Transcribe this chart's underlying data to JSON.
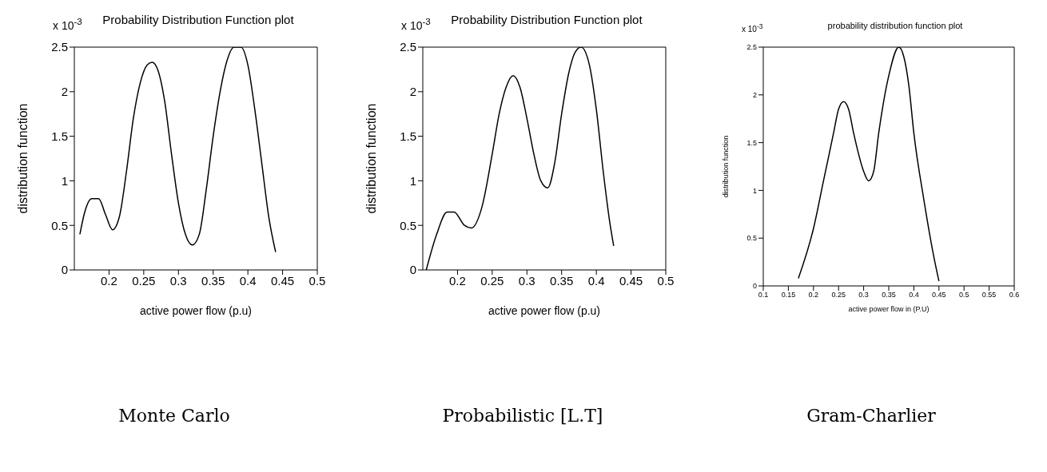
{
  "chart_data": [
    {
      "type": "line",
      "title": "Probability Distribution Function plot",
      "xlabel": "active power flow (p.u)",
      "ylabel": "distribution function",
      "annotations": [
        "x 10$^{-3}$",
        "Monte Carlo"
      ],
      "xlim": [
        0.15,
        0.5
      ],
      "xticks": [
        0.2,
        0.25,
        0.3,
        0.35,
        0.4,
        0.45,
        0.5
      ],
      "ylim": [
        0,
        2.5
      ],
      "yticks": [
        0,
        0.5,
        1,
        1.5,
        2,
        2.5
      ],
      "marker": "none",
      "series": [
        {
          "color": "#000000",
          "x": [
            0.158,
            0.165,
            0.175,
            0.185,
            0.195,
            0.205,
            0.215,
            0.225,
            0.235,
            0.245,
            0.255,
            0.262,
            0.27,
            0.28,
            0.29,
            0.3,
            0.31,
            0.32,
            0.33,
            0.34,
            0.35,
            0.36,
            0.37,
            0.38,
            0.39,
            0.4,
            0.41,
            0.42,
            0.43,
            0.44
          ],
          "values": [
            0.4,
            0.65,
            0.8,
            0.8,
            0.62,
            0.45,
            0.6,
            1.1,
            1.7,
            2.1,
            2.3,
            2.33,
            2.25,
            1.9,
            1.3,
            0.75,
            0.4,
            0.28,
            0.4,
            0.9,
            1.5,
            2.0,
            2.35,
            2.5,
            2.5,
            2.3,
            1.8,
            1.2,
            0.6,
            0.2
          ]
        }
      ]
    },
    {
      "type": "line",
      "title": "Probability Distribution Function plot",
      "xlabel": "active power flow (p.u)",
      "ylabel": "distribution function",
      "annotations": [
        "x 10$^{-3}$",
        "Probabilistic [L.T]"
      ],
      "xlim": [
        0.15,
        0.5
      ],
      "xticks": [
        0.2,
        0.25,
        0.3,
        0.35,
        0.4,
        0.45,
        0.5
      ],
      "ylim": [
        0,
        2.5
      ],
      "yticks": [
        0,
        0.5,
        1,
        1.5,
        2,
        2.5
      ],
      "marker": "none",
      "series": [
        {
          "color": "#000000",
          "x": [
            0.155,
            0.17,
            0.185,
            0.195,
            0.21,
            0.22,
            0.235,
            0.25,
            0.26,
            0.27,
            0.28,
            0.29,
            0.3,
            0.31,
            0.32,
            0.33,
            0.34,
            0.35,
            0.36,
            0.37,
            0.378,
            0.39,
            0.4,
            0.41,
            0.42,
            0.425
          ],
          "values": [
            0,
            0.4,
            0.65,
            0.65,
            0.5,
            0.47,
            0.7,
            1.3,
            1.75,
            2.05,
            2.18,
            2.05,
            1.7,
            1.3,
            1.0,
            0.92,
            1.2,
            1.75,
            2.2,
            2.45,
            2.5,
            2.3,
            1.8,
            1.1,
            0.5,
            0.27
          ]
        }
      ]
    },
    {
      "type": "line",
      "title": "probability distribution function plot",
      "xlabel": "active power flow  in (P.U)",
      "ylabel": "distribution function",
      "annotations": [
        "x 10$^{-3}$",
        "Gram-Charlier"
      ],
      "xlim": [
        0.1,
        0.6
      ],
      "xticks": [
        0.1,
        0.15,
        0.2,
        0.25,
        0.3,
        0.35,
        0.4,
        0.45,
        0.5,
        0.55,
        0.6
      ],
      "ylim": [
        0,
        2.5
      ],
      "yticks": [
        0,
        0.5,
        1,
        1.5,
        2,
        2.5
      ],
      "marker": "none",
      "series": [
        {
          "color": "#000000",
          "x": [
            0.17,
            0.2,
            0.22,
            0.24,
            0.25,
            0.26,
            0.27,
            0.28,
            0.3,
            0.31,
            0.32,
            0.33,
            0.35,
            0.37,
            0.38,
            0.39,
            0.4,
            0.42,
            0.44,
            0.45
          ],
          "values": [
            0.08,
            0.6,
            1.1,
            1.6,
            1.85,
            1.93,
            1.85,
            1.6,
            1.2,
            1.1,
            1.2,
            1.6,
            2.2,
            2.5,
            2.4,
            2.1,
            1.6,
            0.9,
            0.3,
            0.05
          ]
        }
      ]
    }
  ]
}
